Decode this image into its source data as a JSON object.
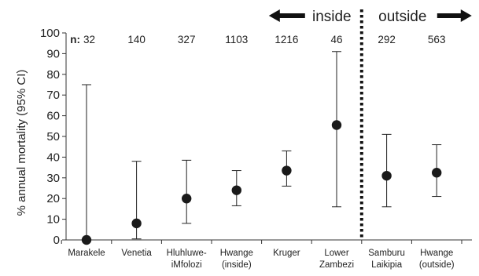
{
  "chart_data": {
    "type": "scatter",
    "ylabel": "% annual mortality (95% CI)",
    "ylim": [
      0,
      100
    ],
    "yticks": [
      0,
      10,
      20,
      30,
      40,
      50,
      60,
      70,
      80,
      90,
      100
    ],
    "categories": [
      {
        "line1": "Marakele",
        "line2": ""
      },
      {
        "line1": "Venetia",
        "line2": ""
      },
      {
        "line1": "Hluhluwe-",
        "line2": "iMfolozi"
      },
      {
        "line1": "Hwange",
        "line2": "(inside)"
      },
      {
        "line1": "Kruger",
        "line2": ""
      },
      {
        "line1": "Lower",
        "line2": "Zambezi"
      },
      {
        "line1": "Samburu",
        "line2": "Laikipia"
      },
      {
        "line1": "Hwange",
        "line2": "(outside)"
      }
    ],
    "n_prefix": "n:",
    "n": [
      "32",
      "140",
      "327",
      "1103",
      "1216",
      "46",
      "292",
      "563"
    ],
    "values": [
      0,
      8,
      20,
      24,
      33.5,
      55.5,
      31,
      32.5
    ],
    "ci_low": [
      0,
      0.5,
      8,
      16.5,
      26,
      16,
      16,
      21
    ],
    "ci_high": [
      75,
      38,
      38.5,
      33.5,
      43,
      91,
      51,
      46
    ],
    "regions": {
      "inside": "inside",
      "outside": "outside"
    },
    "divider_after_category": 6,
    "grid": false,
    "legend": "none"
  }
}
